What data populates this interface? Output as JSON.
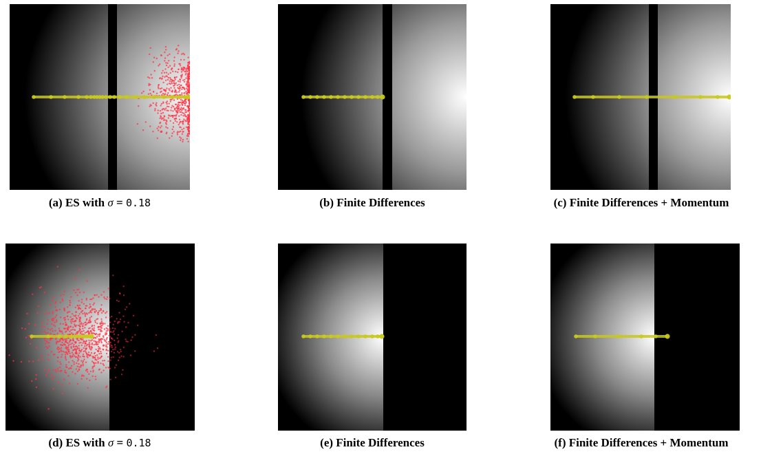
{
  "panels": [
    {
      "id": "a",
      "label": "(a)",
      "method": "ES with",
      "symbol": "σ",
      "eq": "=",
      "value": "0.18",
      "side": "left",
      "samples": "ring",
      "trail": "a"
    },
    {
      "id": "b",
      "label": "(b)",
      "method": "Finite Differences",
      "side": "left",
      "samples": "none",
      "trail": "b"
    },
    {
      "id": "c",
      "label": "(c)",
      "method": "Finite Differences + Momentum",
      "side": "left",
      "samples": "none",
      "trail": "c"
    },
    {
      "id": "d",
      "label": "(d)",
      "method": "ES with",
      "symbol": "σ",
      "eq": "=",
      "value": "0.18",
      "side": "right",
      "samples": "cloud",
      "trail": "d"
    },
    {
      "id": "e",
      "label": "(e)",
      "method": "Finite Differences",
      "side": "right",
      "samples": "none",
      "trail": "e"
    },
    {
      "id": "f",
      "label": "(f)",
      "method": "Finite Differences + Momentum",
      "side": "right",
      "samples": "none",
      "trail": "f"
    }
  ],
  "colors": {
    "background": "#000000",
    "highlight": "#ffffff",
    "trajectory": "#c8c81e",
    "samples": "#ff3344"
  }
}
